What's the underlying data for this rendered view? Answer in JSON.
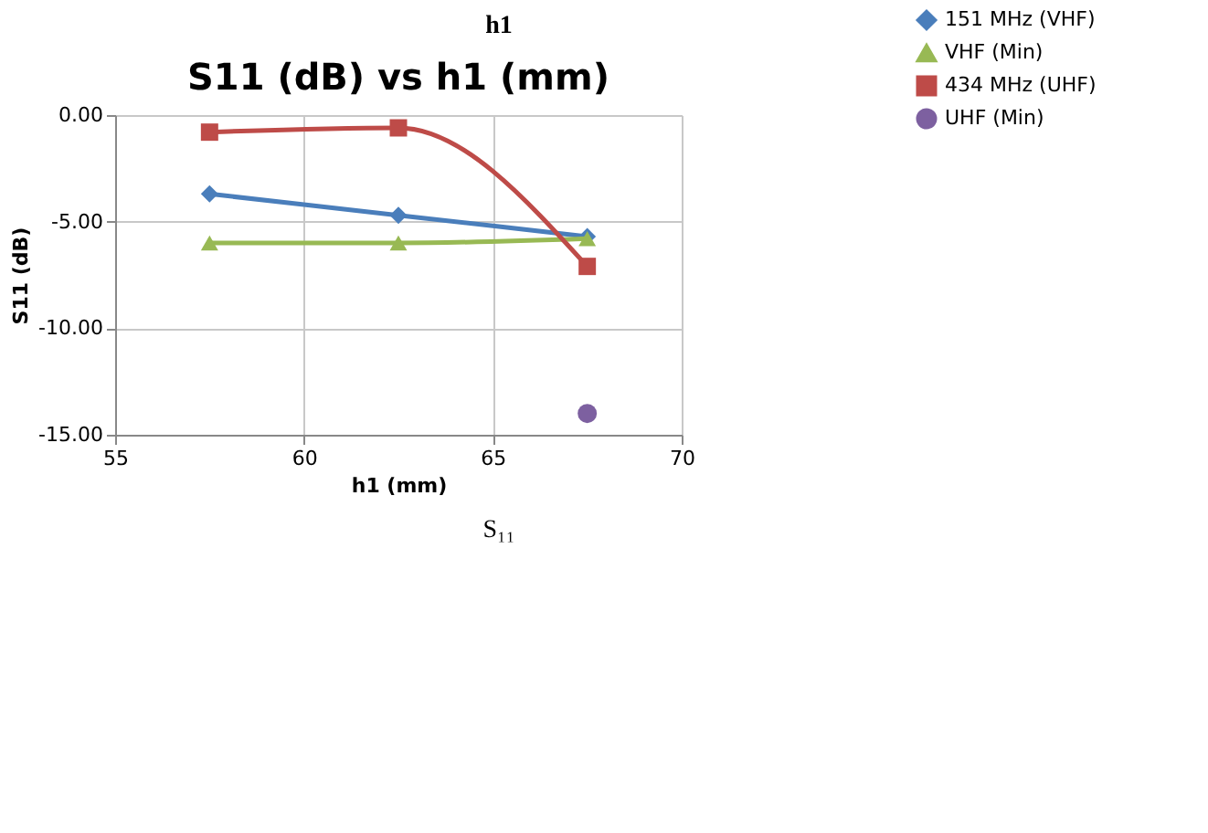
{
  "chart_data": {
    "type": "line",
    "title": "S11 (dB) vs h1 (mm)",
    "xlabel": "h1 (mm)",
    "ylabel": "S11 (dB)",
    "annotations": [
      "h1",
      "S₁₁"
    ],
    "x": [
      57.5,
      62.5,
      67.5
    ],
    "series": [
      {
        "name": "151 MHz (VHF)",
        "color": "#4a7ebb",
        "marker": "diamond",
        "values": [
          -3.7,
          -4.7,
          -5.7
        ]
      },
      {
        "name": "VHF (Min)",
        "color": "#98b954",
        "marker": "triangle",
        "values": [
          -6.0,
          -6.0,
          -5.8
        ]
      },
      {
        "name": "434 MHz (UHF)",
        "color": "#be4b48",
        "marker": "square",
        "values": [
          -0.8,
          -0.6,
          -7.1
        ]
      },
      {
        "name": "UHF (Min)",
        "color": "#7d60a0",
        "marker": "circle",
        "type": "scatter",
        "values": [
          null,
          null,
          -14.0
        ]
      }
    ],
    "xlim": [
      55,
      70
    ],
    "xticks": [
      55,
      60,
      65,
      70
    ],
    "ylim": [
      -15,
      0
    ],
    "yticks": [
      {
        "value": -15,
        "label": "-15.00"
      },
      {
        "value": -10,
        "label": "-10.00"
      },
      {
        "value": -5,
        "label": "-5.00"
      },
      {
        "value": 0,
        "label": "0.00"
      }
    ],
    "grid": true,
    "legend": "right"
  }
}
